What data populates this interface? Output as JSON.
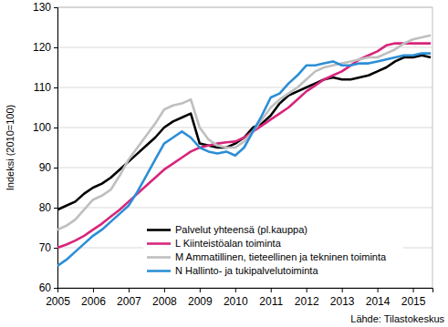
{
  "chart_data": {
    "type": "line",
    "y_label": "Indeksi (2010=100)",
    "source": "Lähde: Tilastokeskus",
    "x": [
      2005,
      2005.25,
      2005.5,
      2005.75,
      2006,
      2006.25,
      2006.5,
      2006.75,
      2007,
      2007.25,
      2007.5,
      2007.75,
      2008,
      2008.25,
      2008.5,
      2008.75,
      2009,
      2009.25,
      2009.5,
      2009.75,
      2010,
      2010.25,
      2010.5,
      2010.75,
      2011,
      2011.25,
      2011.5,
      2011.75,
      2012,
      2012.25,
      2012.5,
      2012.75,
      2013,
      2013.25,
      2013.5,
      2013.75,
      2014,
      2014.25,
      2014.5,
      2014.75,
      2015,
      2015.25,
      2015.5
    ],
    "series": [
      {
        "name": "Palvelut yhteensä (pl.kauppa)",
        "color": "#000000",
        "values": [
          79.5,
          80.5,
          81.5,
          83.5,
          85,
          86,
          87.5,
          89.5,
          91.5,
          93.5,
          95.5,
          97.5,
          100,
          101.5,
          102.5,
          103.5,
          96,
          95.5,
          95,
          95,
          96,
          97.5,
          100,
          101,
          103,
          106,
          108,
          109,
          110,
          111,
          112,
          112.5,
          112,
          112,
          112.5,
          113,
          114,
          115,
          116.5,
          117.5,
          117.5,
          118,
          117.5
        ]
      },
      {
        "name": "L Kiinteistöalan toiminta",
        "color": "#d7267b",
        "values": [
          70,
          70.8,
          71.8,
          73,
          74.5,
          76,
          77.8,
          79.5,
          81.5,
          83.5,
          85.5,
          87.5,
          89.5,
          91,
          92.5,
          94,
          95,
          95.5,
          96,
          96.3,
          96.5,
          97.5,
          99,
          100.5,
          102,
          103.5,
          105,
          107,
          109,
          110.5,
          112,
          113,
          114,
          115.5,
          117,
          118,
          119,
          120.5,
          121,
          121,
          121,
          121,
          121
        ]
      },
      {
        "name": "M Ammatillinen, tieteellinen ja tekninen toiminta",
        "color": "#bfbfbf",
        "values": [
          74.5,
          75.5,
          77,
          79.5,
          82,
          83,
          84.5,
          88,
          92,
          95,
          98,
          101,
          104.5,
          105.5,
          106,
          107,
          100,
          97,
          95.5,
          95,
          95,
          96.5,
          99,
          102,
          105,
          107,
          108.5,
          110,
          112,
          114,
          115,
          115.5,
          116,
          116.5,
          117,
          117.5,
          117.5,
          118.5,
          119.5,
          121,
          122,
          122.5,
          123
        ]
      },
      {
        "name": "N Hallinto- ja tukipalvelutoiminta",
        "color": "#2c8ed6",
        "values": [
          65.5,
          67,
          69,
          71,
          73,
          74.5,
          76.5,
          78.5,
          80.5,
          84,
          88,
          92,
          96,
          97.5,
          99,
          97.5,
          95,
          94,
          93.5,
          94,
          93,
          95,
          99,
          103,
          107.5,
          108.5,
          111,
          113,
          115.5,
          115.5,
          116,
          116.5,
          115.5,
          115.5,
          116,
          116,
          116.5,
          117,
          117.5,
          118,
          118,
          118.5,
          118.5
        ]
      }
    ],
    "xlim": [
      2005,
      2015.55
    ],
    "xticks": [
      2005,
      2006,
      2007,
      2008,
      2009,
      2010,
      2011,
      2012,
      2013,
      2014,
      2015
    ],
    "ylim": [
      60,
      130
    ],
    "yticks": [
      60,
      70,
      80,
      90,
      100,
      110,
      120,
      130
    ],
    "grid": true,
    "legend": "lower right"
  }
}
